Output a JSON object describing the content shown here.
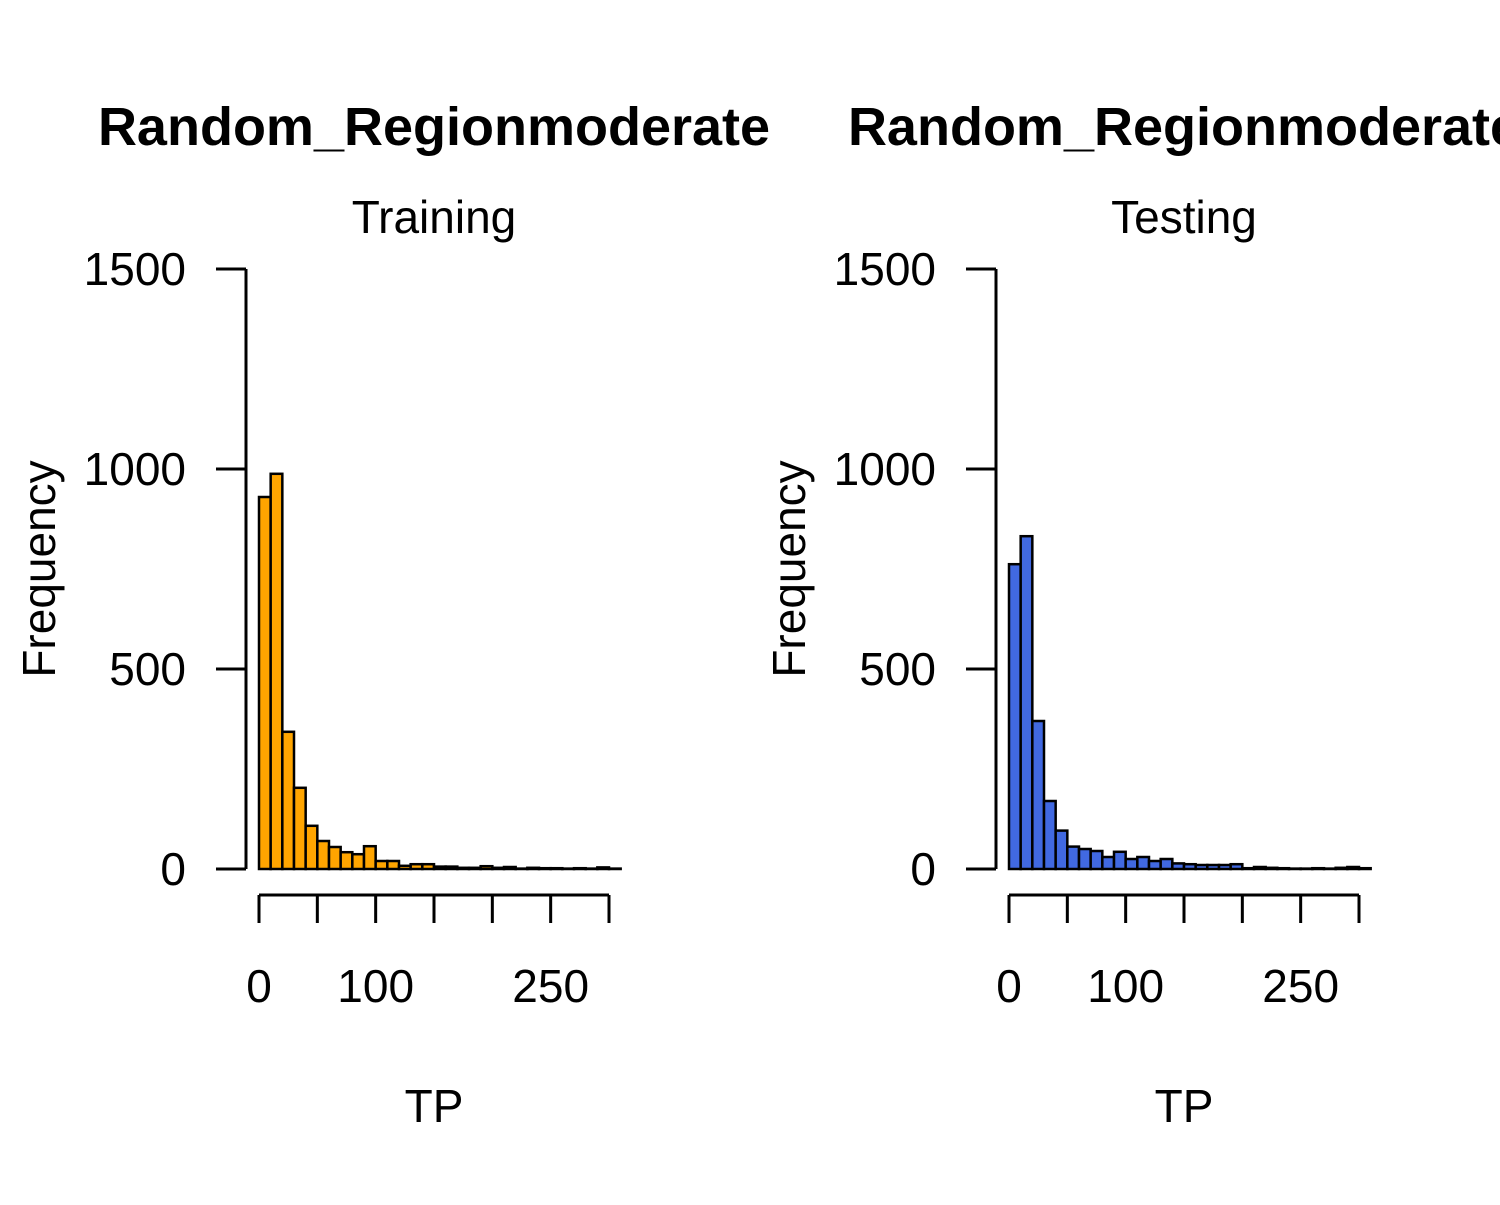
{
  "chart_data": [
    {
      "type": "bar",
      "title": "Random_Regionmoderate",
      "subtitle": "Training",
      "xlabel": "TP",
      "ylabel": "Frequency",
      "xlim": [
        0,
        300
      ],
      "ylim": [
        0,
        1500
      ],
      "xticks": [
        0,
        50,
        100,
        150,
        200,
        250,
        300
      ],
      "xtick_labels": [
        "0",
        "",
        "100",
        "",
        "",
        "250",
        ""
      ],
      "yticks": [
        0,
        500,
        1000,
        1500
      ],
      "ytick_labels": [
        "0",
        "500",
        "1000",
        "1500"
      ],
      "bin_width": 10,
      "bin_start": 0,
      "values": [
        930,
        988,
        343,
        203,
        108,
        70,
        55,
        42,
        37,
        57,
        20,
        20,
        8,
        12,
        12,
        6,
        6,
        3,
        3,
        7,
        3,
        5,
        1,
        3,
        2,
        2,
        1,
        2,
        1,
        4,
        1
      ],
      "fill_color": "#FFA500",
      "grid": false
    },
    {
      "type": "bar",
      "title": "Random_Regionmoderate",
      "subtitle": "Testing",
      "xlabel": "TP",
      "ylabel": "Frequency",
      "xlim": [
        0,
        300
      ],
      "ylim": [
        0,
        1500
      ],
      "xticks": [
        0,
        50,
        100,
        150,
        200,
        250,
        300
      ],
      "xtick_labels": [
        "0",
        "",
        "100",
        "",
        "",
        "250",
        ""
      ],
      "yticks": [
        0,
        500,
        1000,
        1500
      ],
      "ytick_labels": [
        "0",
        "500",
        "1000",
        "1500"
      ],
      "bin_width": 10,
      "bin_start": 0,
      "values": [
        762,
        832,
        370,
        170,
        96,
        56,
        50,
        45,
        30,
        43,
        25,
        30,
        20,
        25,
        14,
        12,
        10,
        10,
        10,
        12,
        2,
        5,
        3,
        2,
        1,
        1,
        2,
        1,
        3,
        5,
        2
      ],
      "fill_color": "#4169E1",
      "grid": false
    }
  ]
}
